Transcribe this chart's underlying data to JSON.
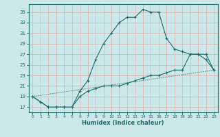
{
  "xlabel": "Humidex (Indice chaleur)",
  "bg_color": "#cce8e8",
  "line_color": "#1a6b6b",
  "grid_color": "#b8d8d8",
  "xlim": [
    -0.5,
    23.5
  ],
  "ylim": [
    16,
    36.5
  ],
  "yticks": [
    17,
    19,
    21,
    23,
    25,
    27,
    29,
    31,
    33,
    35
  ],
  "xticks": [
    0,
    1,
    2,
    3,
    4,
    5,
    6,
    7,
    8,
    9,
    10,
    11,
    12,
    13,
    14,
    15,
    16,
    17,
    18,
    19,
    20,
    21,
    22,
    23
  ],
  "line1_x": [
    0,
    1,
    2,
    3,
    4,
    5,
    6,
    7,
    8,
    9,
    10,
    11,
    12,
    13,
    14,
    15,
    16,
    17,
    18,
    19,
    20,
    21,
    22,
    23
  ],
  "line1_y": [
    19,
    18,
    17,
    17,
    17,
    17,
    20,
    22,
    26,
    29,
    31,
    33,
    34,
    34,
    35.5,
    35,
    35,
    30,
    28,
    27.5,
    27,
    27,
    26,
    24
  ],
  "line2_x": [
    0,
    1,
    2,
    3,
    4,
    5,
    6,
    7,
    8,
    9,
    10,
    11,
    12,
    13,
    14,
    15,
    16,
    17,
    18,
    19,
    20,
    21,
    22,
    23
  ],
  "line2_y": [
    19,
    18,
    17,
    17,
    17,
    17,
    19,
    20,
    20.5,
    21,
    21,
    21,
    21.5,
    22,
    22.5,
    23,
    23,
    23.5,
    24,
    24,
    27,
    27,
    27,
    24
  ],
  "line3_x": [
    0,
    23
  ],
  "line3_y": [
    19,
    24
  ]
}
